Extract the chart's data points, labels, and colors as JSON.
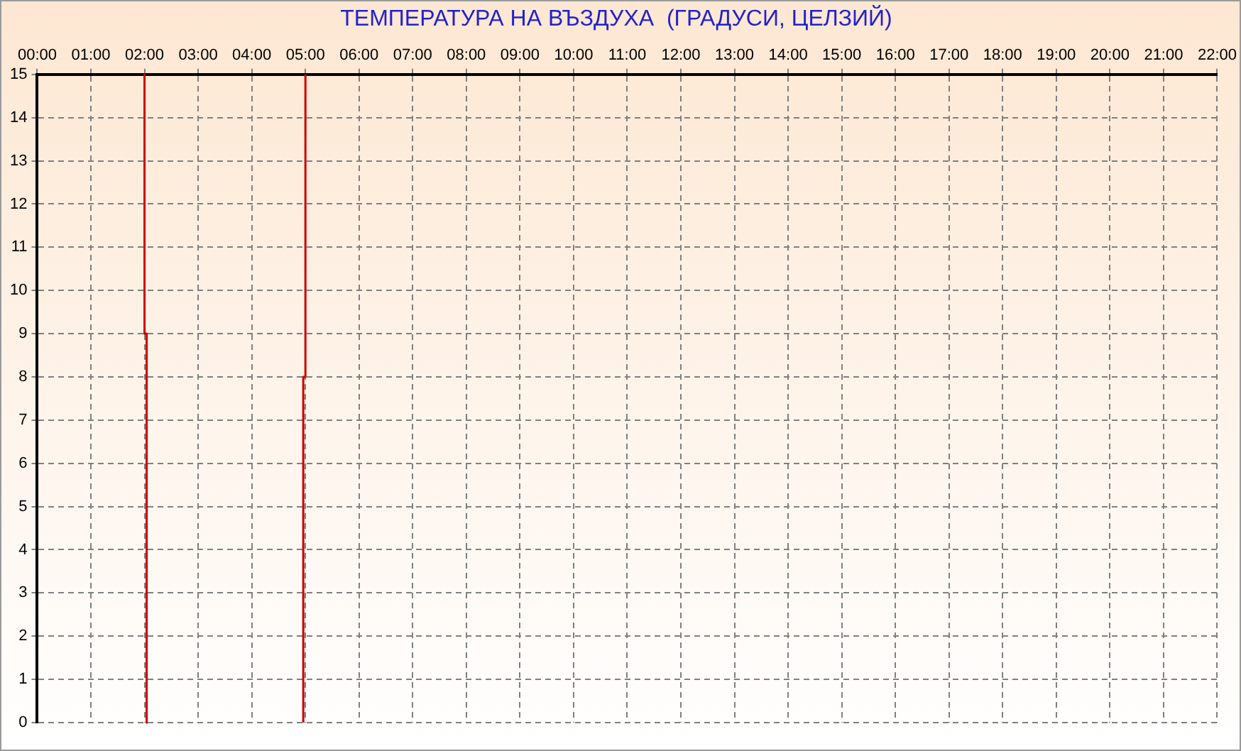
{
  "chart_data": {
    "type": "line",
    "title": "ТЕМПЕРАТУРА НА ВЪЗДУХА  (ГРАДУСИ, ЦЕЛЗИЙ)",
    "x": [
      2,
      2,
      2.04,
      2.04,
      3.5,
      4.96,
      4.96,
      5,
      5
    ],
    "series": [
      {
        "color": "#cc0000",
        "values": [
          15,
          9,
          9,
          0,
          null,
          0,
          8,
          8,
          15
        ]
      }
    ],
    "xlim": [
      0,
      22
    ],
    "xticks": [
      {
        "value": 0,
        "label": "00:00"
      },
      {
        "value": 1,
        "label": "01:00"
      },
      {
        "value": 2,
        "label": "02:00"
      },
      {
        "value": 3,
        "label": "03:00"
      },
      {
        "value": 4,
        "label": "04:00"
      },
      {
        "value": 5,
        "label": "05:00"
      },
      {
        "value": 6,
        "label": "06:00"
      },
      {
        "value": 7,
        "label": "07:00"
      },
      {
        "value": 8,
        "label": "08:00"
      },
      {
        "value": 9,
        "label": "09:00"
      },
      {
        "value": 10,
        "label": "10:00"
      },
      {
        "value": 11,
        "label": "11:00"
      },
      {
        "value": 12,
        "label": "12:00"
      },
      {
        "value": 13,
        "label": "13:00"
      },
      {
        "value": 14,
        "label": "14:00"
      },
      {
        "value": 15,
        "label": "15:00"
      },
      {
        "value": 16,
        "label": "16:00"
      },
      {
        "value": 17,
        "label": "17:00"
      },
      {
        "value": 18,
        "label": "18:00"
      },
      {
        "value": 19,
        "label": "19:00"
      },
      {
        "value": 20,
        "label": "20:00"
      },
      {
        "value": 21,
        "label": "21:00"
      },
      {
        "value": 22,
        "label": "22:00"
      }
    ],
    "ylim": [
      0,
      15
    ],
    "yticks": [
      0,
      1,
      2,
      3,
      4,
      5,
      6,
      7,
      8,
      9,
      10,
      11,
      12,
      13,
      14,
      15
    ],
    "grid": true,
    "legend": false,
    "marker": "none",
    "line_style": "solid"
  }
}
